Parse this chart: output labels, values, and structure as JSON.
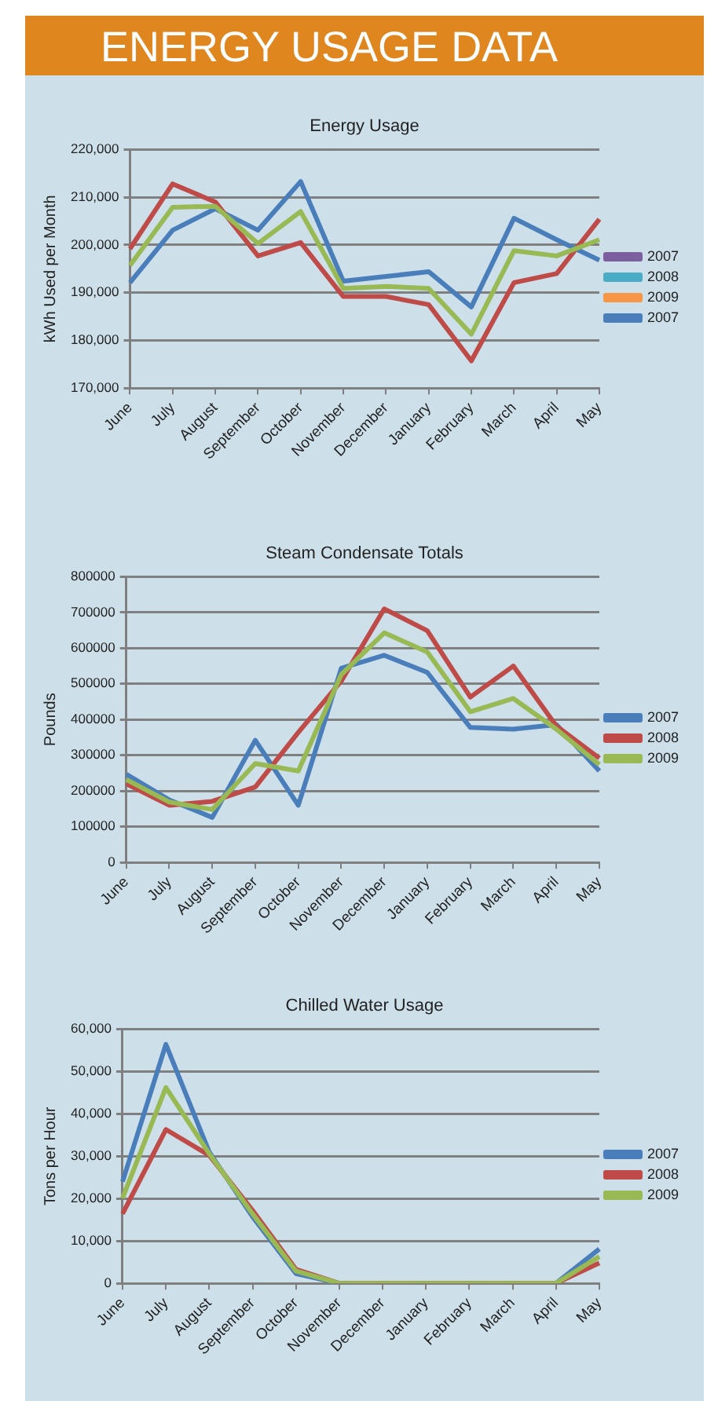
{
  "chart_data": [
    {
      "type": "other",
      "title": "ENERGY USAGE DATA"
    },
    {
      "type": "line",
      "title": "Energy Usage",
      "ylabel": "kWh Used per Month",
      "categories": [
        "June",
        "July",
        "August",
        "September",
        "October",
        "November",
        "December",
        "January",
        "February",
        "March",
        "April",
        "May"
      ],
      "series": [
        {
          "name": "2007",
          "color": "#7d5fa0",
          "values": [
            null,
            null,
            null,
            null,
            null,
            null,
            null,
            null,
            null,
            null,
            null,
            null
          ]
        },
        {
          "name": "2008",
          "color": "#4bacc6",
          "values": [
            null,
            null,
            null,
            null,
            null,
            null,
            null,
            null,
            null,
            null,
            null,
            null
          ]
        },
        {
          "name": "2009",
          "color": "#f79646",
          "values": [
            null,
            null,
            null,
            null,
            null,
            null,
            null,
            null,
            null,
            null,
            null,
            null
          ]
        },
        {
          "name": "2007",
          "color": "#4a7ebb",
          "values": [
            192100,
            203100,
            207600,
            203100,
            213300,
            192400,
            193400,
            194400,
            187000,
            205600,
            201100,
            196800
          ]
        },
        {
          "color": "#be4b48",
          "values": [
            199200,
            212800,
            209000,
            197700,
            200500,
            189200,
            189200,
            187500,
            175700,
            192100,
            194000,
            205400
          ]
        },
        {
          "color": "#98b954",
          "values": [
            195700,
            207900,
            208100,
            200300,
            207000,
            190900,
            191300,
            190900,
            181300,
            198800,
            197700,
            201100
          ]
        }
      ],
      "ylim": [
        170000,
        220000
      ],
      "yticks": [
        {
          "value": 170000,
          "label": "170,000"
        },
        {
          "value": 180000,
          "label": "180,000"
        },
        {
          "value": 190000,
          "label": "190,000"
        },
        {
          "value": 200000,
          "label": "200,000"
        },
        {
          "value": 210000,
          "label": "210,000"
        },
        {
          "value": 220000,
          "label": "220,000"
        }
      ],
      "grid": "y",
      "legend": "right",
      "marker": "none"
    },
    {
      "type": "line",
      "title": "Steam Condensate Totals",
      "ylabel": "Pounds",
      "categories": [
        "June",
        "July",
        "August",
        "September",
        "October",
        "November",
        "December",
        "January",
        "February",
        "March",
        "April",
        "May"
      ],
      "series": [
        {
          "name": "2007",
          "color": "#4a7ebb",
          "values": [
            247000,
            175000,
            126000,
            342000,
            160000,
            544000,
            580000,
            532000,
            378000,
            373000,
            386000,
            256000
          ]
        },
        {
          "name": "2008",
          "color": "#be4b48",
          "values": [
            220000,
            160000,
            171000,
            211000,
            364000,
            508000,
            710000,
            649000,
            463000,
            550000,
            382000,
            292000
          ]
        },
        {
          "name": "2009",
          "color": "#98b954",
          "values": [
            232000,
            169000,
            148000,
            277000,
            256000,
            526000,
            643000,
            589000,
            422000,
            459000,
            373000,
            274000
          ]
        }
      ],
      "ylim": [
        0,
        800000
      ],
      "yticks": [
        0,
        100000,
        200000,
        300000,
        400000,
        500000,
        600000,
        700000,
        800000
      ],
      "grid": "y",
      "legend": "right",
      "marker": "none"
    },
    {
      "type": "line",
      "title": "Chilled Water Usage",
      "ylabel": "Tons per Hour",
      "categories": [
        "June",
        "July",
        "August",
        "September",
        "October",
        "November",
        "December",
        "January",
        "February",
        "March",
        "April",
        "May"
      ],
      "series": [
        {
          "name": "2007",
          "color": "#4a7ebb",
          "values": [
            24000,
            56400,
            31000,
            15700,
            2300,
            0,
            0,
            0,
            0,
            0,
            0,
            8100
          ]
        },
        {
          "name": "2008",
          "color": "#be4b48",
          "values": [
            16400,
            36300,
            30200,
            17200,
            3300,
            0,
            0,
            0,
            0,
            0,
            0,
            4800
          ]
        },
        {
          "name": "2009",
          "color": "#98b954",
          "values": [
            20100,
            46200,
            30600,
            16400,
            2900,
            0,
            0,
            0,
            0,
            0,
            0,
            6300
          ]
        }
      ],
      "ylim": [
        0,
        60000
      ],
      "yticks": [
        0,
        {
          "value": 10000,
          "label": "10,000"
        },
        {
          "value": 20000,
          "label": "20,000"
        },
        {
          "value": 30000,
          "label": "30,000"
        },
        {
          "value": 40000,
          "label": "40,000"
        },
        {
          "value": 50000,
          "label": "50,000"
        },
        {
          "value": 60000,
          "label": "60,000"
        }
      ],
      "grid": "y",
      "legend": "right",
      "marker": "none"
    }
  ]
}
